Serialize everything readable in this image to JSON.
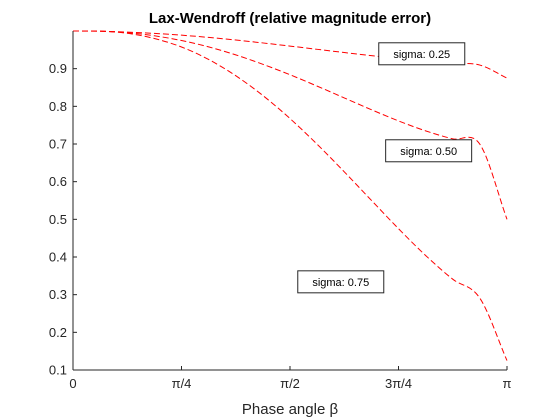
{
  "chart_data": {
    "type": "line",
    "title": "Lax-Wendroff (relative magnitude error)",
    "xlabel": "Phase angle β",
    "ylabel": "",
    "xlim": [
      0,
      3.14159265
    ],
    "ylim": [
      0.1,
      1.0
    ],
    "grid": false,
    "x_ticks": [
      {
        "value": 0,
        "label": "0"
      },
      {
        "value": 0.78539816,
        "label": "π/4"
      },
      {
        "value": 1.57079633,
        "label": "π/2"
      },
      {
        "value": 2.35619449,
        "label": "3π/4"
      },
      {
        "value": 3.14159265,
        "label": "π"
      }
    ],
    "y_ticks": [
      {
        "value": 0.1,
        "label": "0.1"
      },
      {
        "value": 0.2,
        "label": "0.2"
      },
      {
        "value": 0.3,
        "label": "0.3"
      },
      {
        "value": 0.4,
        "label": "0.4"
      },
      {
        "value": 0.5,
        "label": "0.5"
      },
      {
        "value": 0.6,
        "label": "0.6"
      },
      {
        "value": 0.7,
        "label": "0.7"
      },
      {
        "value": 0.8,
        "label": "0.8"
      },
      {
        "value": 0.9,
        "label": "0.9"
      }
    ],
    "line_color": "#ff0000",
    "series": [
      {
        "sigma": 0.25,
        "x": [
          0,
          0.19635,
          0.3927,
          0.58905,
          0.7854,
          0.98175,
          1.1781,
          1.37445,
          1.5708,
          1.76715,
          1.9635,
          2.15985,
          2.35619,
          2.55254,
          2.74889,
          2.94524,
          3.14159
        ],
        "values": [
          1.0,
          0.9992,
          0.9971,
          0.9936,
          0.9889,
          0.983,
          0.9761,
          0.9683,
          0.96,
          0.9514,
          0.9428,
          0.9345,
          0.9267,
          0.9198,
          0.914,
          0.9096,
          0.875
        ]
      },
      {
        "sigma": 0.5,
        "x": [
          0,
          0.19635,
          0.3927,
          0.58905,
          0.7854,
          0.98175,
          1.1781,
          1.37445,
          1.5708,
          1.76715,
          1.9635,
          2.15985,
          2.35619,
          2.55254,
          2.74889,
          2.94524,
          3.14159
        ],
        "values": [
          1.0,
          0.9997,
          0.9955,
          0.9873,
          0.9747,
          0.9578,
          0.9366,
          0.9116,
          0.8839,
          0.8537,
          0.8224,
          0.7911,
          0.7613,
          0.7349,
          0.7137,
          0.6993,
          0.5
        ]
      },
      {
        "sigma": 0.75,
        "x": [
          0,
          0.19635,
          0.3927,
          0.58905,
          0.7854,
          0.98175,
          1.1781,
          1.37445,
          1.5708,
          1.76715,
          1.9635,
          2.15985,
          2.35619,
          2.55254,
          2.74889,
          2.94524,
          3.14159
        ],
        "values": [
          1.0,
          0.9996,
          0.9939,
          0.98,
          0.9576,
          0.9244,
          0.8813,
          0.8287,
          0.7676,
          0.6993,
          0.6262,
          0.5505,
          0.4752,
          0.4041,
          0.3411,
          0.2906,
          0.125
        ]
      }
    ],
    "annotations": [
      {
        "text": "sigma: 0.25",
        "x": 2.5246,
        "y": 0.9395
      },
      {
        "text": "sigma: 0.50",
        "x": 2.5745,
        "y": 0.682
      },
      {
        "text": "sigma: 0.75",
        "x": 1.9383,
        "y": 0.3341
      }
    ]
  }
}
